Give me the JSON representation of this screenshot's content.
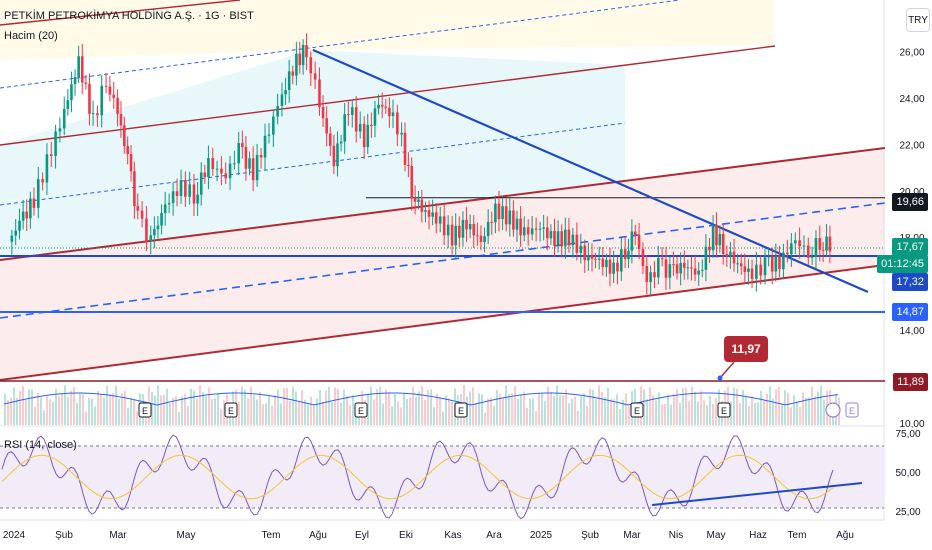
{
  "header": {
    "title": "PETKİM PETROKİMYA HOLDİNG A.Ş. · 1G · BIST",
    "volume_label": "Hacim (20)",
    "rsi_label": "RSI (14, close)",
    "currency": "TRY"
  },
  "price_tags": {
    "current": "17,67",
    "countdown": "01:12:45",
    "level_1966": "19,66",
    "level_1732": "17,32",
    "level_1487": "14,87",
    "level_1189": "11,89",
    "callout": "11,97"
  },
  "colors": {
    "up": "#089981",
    "down": "#f23645",
    "trend_blue": "#1e49c7",
    "channel_red": "#b22833",
    "rsi_line": "#7e57c2",
    "rsi_ma": "#f7c431",
    "volume_avg": "#2962ff"
  },
  "chart_data": {
    "type": "candlestick",
    "title": "PETKİM PETROKİMYA HOLDİNG A.Ş. · 1G · BIST",
    "price_axis_ticks": [
      "26,00",
      "24,00",
      "22,00",
      "20,00",
      "18,00",
      "16,00",
      "14,00",
      "12,00",
      "10,00"
    ],
    "rsi_axis_ticks": [
      "75,00",
      "50,00",
      "25,00"
    ],
    "x_tick_labels": [
      "2024",
      "Şub",
      "Mar",
      "May",
      "Tem",
      "Ağu",
      "Eyl",
      "Eki",
      "Kas",
      "Ara",
      "2025",
      "Şub",
      "Mar",
      "Nis",
      "May",
      "Haz",
      "Tem",
      "Ağu"
    ],
    "price_close_path": [
      [
        "2024-01-02",
        17.8
      ],
      [
        "2024-01-10",
        18.6
      ],
      [
        "2024-01-20",
        19.6
      ],
      [
        "2024-02-01",
        21.8
      ],
      [
        "2024-02-10",
        23.4
      ],
      [
        "2024-02-20",
        25.6
      ],
      [
        "2024-03-01",
        23.0
      ],
      [
        "2024-03-10",
        24.8
      ],
      [
        "2024-03-18",
        23.4
      ],
      [
        "2024-03-25",
        21.4
      ],
      [
        "2024-04-01",
        18.8
      ],
      [
        "2024-04-10",
        17.8
      ],
      [
        "2024-04-20",
        19.4
      ],
      [
        "2024-05-01",
        20.2
      ],
      [
        "2024-05-10",
        19.8
      ],
      [
        "2024-05-20",
        21.2
      ],
      [
        "2024-06-01",
        20.6
      ],
      [
        "2024-06-10",
        21.8
      ],
      [
        "2024-06-20",
        20.8
      ],
      [
        "2024-07-01",
        22.6
      ],
      [
        "2024-07-10",
        24.2
      ],
      [
        "2024-07-20",
        25.6
      ],
      [
        "2024-07-27",
        26.1
      ],
      [
        "2024-08-05",
        23.8
      ],
      [
        "2024-08-15",
        21.2
      ],
      [
        "2024-08-25",
        23.6
      ],
      [
        "2024-09-05",
        22.2
      ],
      [
        "2024-09-15",
        23.8
      ],
      [
        "2024-09-25",
        23.2
      ],
      [
        "2024-10-01",
        22.2
      ],
      [
        "2024-10-08",
        20.0
      ],
      [
        "2024-10-15",
        19.2
      ],
      [
        "2024-10-25",
        18.8
      ],
      [
        "2024-11-05",
        18.0
      ],
      [
        "2024-11-15",
        18.6
      ],
      [
        "2024-11-25",
        17.8
      ],
      [
        "2024-12-05",
        19.2
      ],
      [
        "2024-12-15",
        18.8
      ],
      [
        "2024-12-25",
        18.2
      ],
      [
        "2025-01-05",
        18.4
      ],
      [
        "2025-01-15",
        17.9
      ],
      [
        "2025-01-25",
        18.0
      ],
      [
        "2025-02-05",
        17.2
      ],
      [
        "2025-02-15",
        17.0
      ],
      [
        "2025-02-25",
        16.6
      ],
      [
        "2025-03-05",
        17.4
      ],
      [
        "2025-03-12",
        18.3
      ],
      [
        "2025-03-20",
        16.0
      ],
      [
        "2025-03-28",
        16.8
      ],
      [
        "2025-04-05",
        16.5
      ],
      [
        "2025-04-15",
        16.8
      ],
      [
        "2025-04-25",
        16.4
      ],
      [
        "2025-05-05",
        18.2
      ],
      [
        "2025-05-12",
        17.6
      ],
      [
        "2025-05-22",
        16.8
      ],
      [
        "2025-06-01",
        16.4
      ],
      [
        "2025-06-10",
        16.8
      ],
      [
        "2025-06-20",
        16.9
      ],
      [
        "2025-07-01",
        17.9
      ],
      [
        "2025-07-10",
        17.3
      ],
      [
        "2025-07-18",
        17.8
      ],
      [
        "2025-07-25",
        17.67
      ]
    ],
    "horizontal_levels": [
      19.66,
      17.32,
      14.87,
      11.89
    ],
    "current_price": 17.67,
    "ylim": [
      10,
      27
    ],
    "rsi_ylim": [
      20,
      80
    ],
    "grid": false,
    "legend": "none"
  }
}
